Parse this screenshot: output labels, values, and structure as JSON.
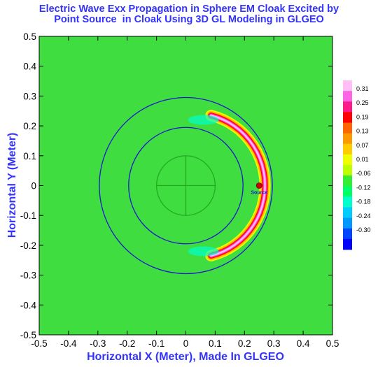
{
  "chart_data": {
    "type": "heatmap",
    "title_lines": [
      "Electric Wave Exx Propagation in Sphere EM Cloak Excited by",
      "Point Source  in Cloak Using 3D GL Modeling in GLGEO"
    ],
    "xlabel": "Horizontal X (Meter), Made In GLGEO",
    "ylabel": "Horizontal Y (Meter)",
    "xlim": [
      -0.5,
      0.5
    ],
    "ylim": [
      -0.5,
      0.5
    ],
    "x_ticks": [
      "-0.5",
      "-0.4",
      "-0.3",
      "-0.2",
      "-0.1",
      "0",
      "0.1",
      "0.2",
      "0.3",
      "0.4",
      "0.5"
    ],
    "y_ticks": [
      "0.5",
      "0.4",
      "0.3",
      "0.2",
      "0.1",
      "0",
      "-0.1",
      "-0.2",
      "-0.3",
      "-0.4",
      "-0.5"
    ],
    "legend": {
      "placement": "right",
      "levels": [
        "0.31",
        "0.25",
        "0.19",
        "0.13",
        "0.07",
        "0.01",
        "-0.06",
        "-0.12",
        "-0.18",
        "-0.24",
        "-0.30"
      ],
      "colors": [
        "#ffbff5",
        "#ff66e6",
        "#ff1a8c",
        "#ff0000",
        "#ff6600",
        "#ff9900",
        "#ffcc00",
        "#eeff00",
        "#bbff00",
        "#33ee33",
        "#00ff66",
        "#00ffcc",
        "#00ccff",
        "#0099ff",
        "#0044ff",
        "#0000ff"
      ]
    },
    "background_color": "#3fdd3f",
    "circles": [
      {
        "name": "cloak outer boundary",
        "cx": 0,
        "cy": 0,
        "r": 0.295,
        "color": "#1a1acc"
      },
      {
        "name": "cloak inner boundary",
        "cx": 0,
        "cy": 0,
        "r": 0.195,
        "color": "#1a1acc"
      },
      {
        "name": "concealed object",
        "cx": 0,
        "cy": 0,
        "r": 0.1,
        "color": "#22aa22"
      }
    ],
    "source": {
      "label": "Source",
      "x": 0.25,
      "y": 0.0,
      "color": "#cc0000"
    },
    "wave_field": {
      "region": "crescent inside cloak shell, right side",
      "x_range": [
        0.04,
        0.3
      ],
      "peak_value": 0.31
    }
  }
}
